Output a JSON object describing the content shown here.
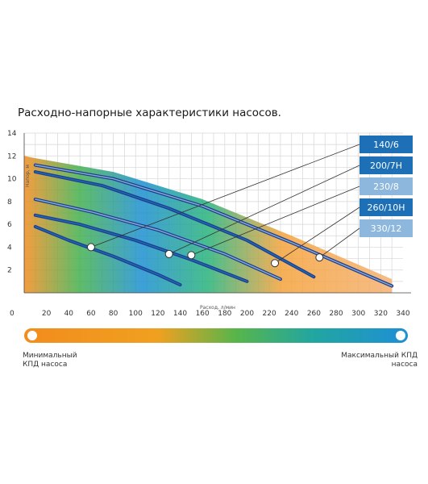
{
  "title": "Расходно-напорные характеристики насосов.",
  "chart_data": {
    "type": "line",
    "xlabel": "Расход, л/мин",
    "ylabel": "Напор, м",
    "xlim": [
      0,
      340
    ],
    "ylim": [
      0,
      14
    ],
    "xticks": [
      20,
      40,
      60,
      80,
      100,
      120,
      140,
      160,
      180,
      200,
      220,
      240,
      260,
      280,
      300,
      320,
      340
    ],
    "yticks": [
      2,
      4,
      6,
      8,
      10,
      12,
      14
    ],
    "grid": true,
    "legend": "right",
    "series": [
      {
        "name": "140/6",
        "color": "#1d6fb6",
        "x": [
          10,
          40,
          80,
          120,
          140
        ],
        "y": [
          5.8,
          4.6,
          3.2,
          1.6,
          0.7
        ]
      },
      {
        "name": "200/7H",
        "color": "#1d6fb6",
        "x": [
          10,
          50,
          100,
          150,
          200
        ],
        "y": [
          6.8,
          6.0,
          4.6,
          2.9,
          1.0
        ]
      },
      {
        "name": "230/8",
        "color": "#8db7dc",
        "x": [
          10,
          60,
          120,
          180,
          230
        ],
        "y": [
          8.2,
          7.1,
          5.5,
          3.4,
          1.2
        ]
      },
      {
        "name": "260/10H",
        "color": "#1d6fb6",
        "x": [
          10,
          70,
          130,
          200,
          260
        ],
        "y": [
          10.6,
          9.4,
          7.4,
          4.6,
          1.4
        ]
      },
      {
        "name": "330/12",
        "color": "#8db7dc",
        "x": [
          10,
          80,
          160,
          240,
          330
        ],
        "y": [
          11.2,
          10.0,
          7.6,
          4.4,
          0.6
        ]
      }
    ],
    "efficiency_scale": {
      "min_label": "Минимальный КПД насоса",
      "max_label": "Максимальный КПД насоса",
      "min_color": "#f28c1e",
      "max_color": "#1e8fd6"
    }
  }
}
